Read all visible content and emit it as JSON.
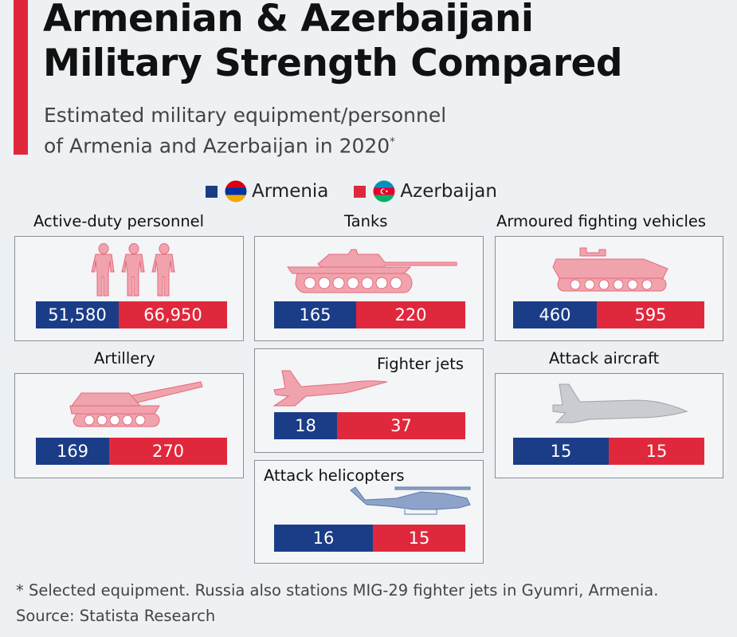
{
  "title_line1": "Armenian & Azerbaijani",
  "title_line2": "Military Strength Compared",
  "subtitle_line1": "Estimated military equipment/personnel",
  "subtitle_line2": "of Armenia and Azerbaijan in 2020",
  "subtitle_mark": "*",
  "legend": [
    {
      "label": "Armenia",
      "color": "#1b3d87"
    },
    {
      "label": "Azerbaijan",
      "color": "#e0283d"
    }
  ],
  "chart_data": {
    "type": "bar",
    "orientation": "horizontal-stacked",
    "series": [
      {
        "name": "Armenia",
        "color": "#1b3d87"
      },
      {
        "name": "Azerbaijan",
        "color": "#e0283d"
      }
    ],
    "categories": [
      {
        "key": "personnel",
        "label": "Active-duty personnel",
        "icon": "soldiers-icon",
        "armenia": 51580,
        "azerbaijan": 66950,
        "armenia_label": "51,580",
        "azerbaijan_label": "66,950"
      },
      {
        "key": "tanks",
        "label": "Tanks",
        "icon": "tank-icon",
        "armenia": 165,
        "azerbaijan": 220,
        "armenia_label": "165",
        "azerbaijan_label": "220"
      },
      {
        "key": "afv",
        "label": "Armoured fighting vehicles",
        "icon": "armoured-vehicle-icon",
        "armenia": 460,
        "azerbaijan": 595,
        "armenia_label": "460",
        "azerbaijan_label": "595"
      },
      {
        "key": "artillery",
        "label": "Artillery",
        "icon": "artillery-icon",
        "armenia": 169,
        "azerbaijan": 270,
        "armenia_label": "169",
        "azerbaijan_label": "270"
      },
      {
        "key": "fighter",
        "label": "Fighter jets",
        "icon": "fighter-jet-icon",
        "armenia": 18,
        "azerbaijan": 37,
        "armenia_label": "18",
        "azerbaijan_label": "37"
      },
      {
        "key": "attack_aircraft",
        "label": "Attack aircraft",
        "icon": "attack-aircraft-icon",
        "armenia": 15,
        "azerbaijan": 15,
        "armenia_label": "15",
        "azerbaijan_label": "15"
      },
      {
        "key": "helicopters",
        "label": "Attack helicopters",
        "icon": "helicopter-icon",
        "armenia": 16,
        "azerbaijan": 15,
        "armenia_label": "16",
        "azerbaijan_label": "15"
      }
    ]
  },
  "footnote": "* Selected equipment. Russia also stations MIG-29 fighter jets in Gyumri, Armenia.",
  "source": "Source: Statista Research"
}
